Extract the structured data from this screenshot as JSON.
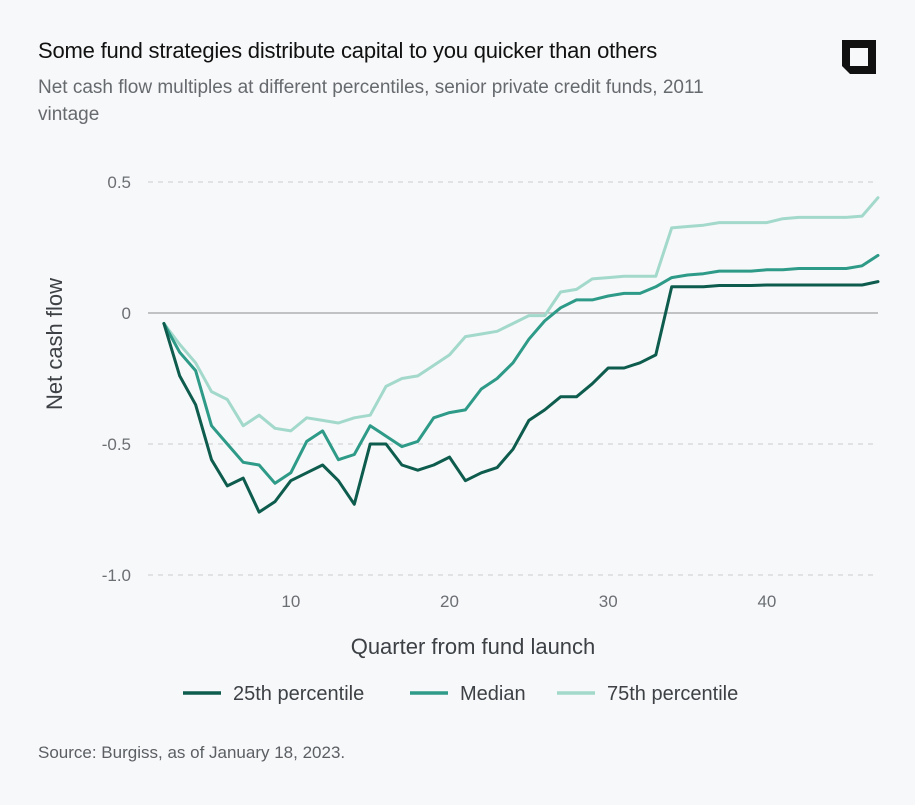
{
  "title": "Some fund strategies distribute capital to you quicker than others",
  "subtitle": "Net cash flow multiples at different percentiles, senior private credit funds, 2011 vintage",
  "source": "Source: Burgiss, as of January 18, 2023.",
  "logo": {
    "icon": "brand-logo-icon",
    "color": "#111111"
  },
  "chart_data": {
    "type": "line",
    "xlabel": "Quarter from fund launch",
    "ylabel": "Net cash flow",
    "xlim": [
      1,
      47
    ],
    "ylim": [
      -1.0,
      0.5
    ],
    "x_ticks": [
      10,
      20,
      30,
      40
    ],
    "y_ticks": [
      0.5,
      0,
      -0.5,
      -1.0
    ],
    "y_tick_labels": [
      "0.5",
      "0",
      "-0.5",
      "-1.0"
    ],
    "grid": "horizontal dashed",
    "legend_position": "bottom",
    "x": [
      2,
      3,
      4,
      5,
      6,
      7,
      8,
      9,
      10,
      11,
      12,
      13,
      14,
      15,
      16,
      17,
      18,
      19,
      20,
      21,
      22,
      23,
      24,
      25,
      26,
      27,
      28,
      29,
      30,
      31,
      32,
      33,
      34,
      35,
      36,
      37,
      38,
      39,
      40,
      41,
      42,
      43,
      44,
      45,
      46,
      47
    ],
    "series": [
      {
        "name": "25th percentile",
        "color": "#0d5c4d",
        "values": [
          -0.04,
          -0.24,
          -0.35,
          -0.56,
          -0.66,
          -0.63,
          -0.76,
          -0.72,
          -0.64,
          -0.61,
          -0.58,
          -0.64,
          -0.73,
          -0.5,
          -0.5,
          -0.58,
          -0.6,
          -0.58,
          -0.55,
          -0.64,
          -0.61,
          -0.59,
          -0.52,
          -0.41,
          -0.37,
          -0.32,
          -0.32,
          -0.27,
          -0.21,
          -0.21,
          -0.19,
          -0.16,
          0.1,
          0.1,
          0.1,
          0.105,
          0.105,
          0.105,
          0.107,
          0.107,
          0.107,
          0.107,
          0.107,
          0.107,
          0.107,
          0.12
        ]
      },
      {
        "name": "Median",
        "color": "#2e9a88",
        "values": [
          -0.04,
          -0.15,
          -0.22,
          -0.43,
          -0.5,
          -0.57,
          -0.58,
          -0.65,
          -0.61,
          -0.49,
          -0.45,
          -0.56,
          -0.54,
          -0.43,
          -0.47,
          -0.51,
          -0.49,
          -0.4,
          -0.38,
          -0.37,
          -0.29,
          -0.25,
          -0.19,
          -0.1,
          -0.03,
          0.02,
          0.05,
          0.05,
          0.065,
          0.075,
          0.075,
          0.1,
          0.135,
          0.145,
          0.15,
          0.16,
          0.16,
          0.16,
          0.165,
          0.165,
          0.17,
          0.17,
          0.17,
          0.17,
          0.18,
          0.22
        ]
      },
      {
        "name": "75th percentile",
        "color": "#a3d9cb",
        "values": [
          -0.04,
          -0.12,
          -0.19,
          -0.3,
          -0.33,
          -0.43,
          -0.39,
          -0.44,
          -0.45,
          -0.4,
          -0.41,
          -0.42,
          -0.4,
          -0.39,
          -0.28,
          -0.25,
          -0.24,
          -0.2,
          -0.16,
          -0.09,
          -0.08,
          -0.07,
          -0.04,
          -0.01,
          -0.01,
          0.08,
          0.09,
          0.13,
          0.135,
          0.14,
          0.14,
          0.14,
          0.325,
          0.33,
          0.335,
          0.345,
          0.345,
          0.345,
          0.345,
          0.36,
          0.365,
          0.365,
          0.365,
          0.365,
          0.37,
          0.44
        ]
      }
    ]
  }
}
